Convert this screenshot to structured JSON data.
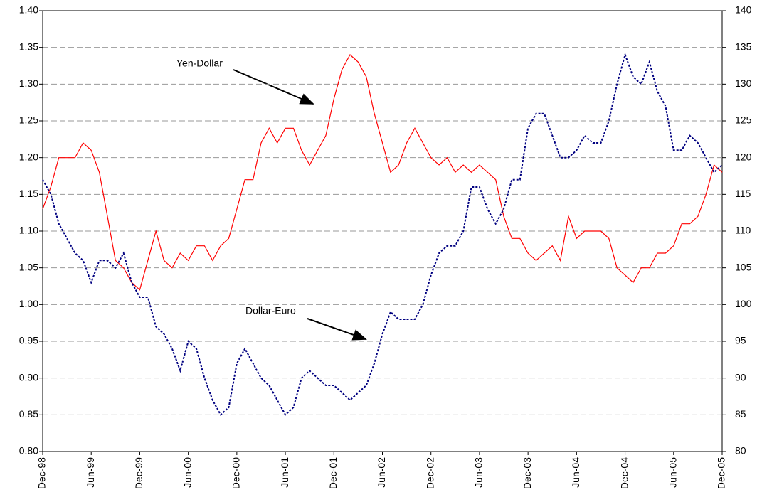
{
  "chart_data": {
    "type": "line",
    "categories": [
      "Dec-98",
      null,
      null,
      null,
      null,
      null,
      "Jun-99",
      null,
      null,
      null,
      null,
      null,
      "Dec-99",
      null,
      null,
      null,
      null,
      null,
      "Jun-00",
      null,
      null,
      null,
      null,
      null,
      "Dec-00",
      null,
      null,
      null,
      null,
      null,
      "Jun-01",
      null,
      null,
      null,
      null,
      null,
      "Dec-01",
      null,
      null,
      null,
      null,
      null,
      "Jun-02",
      null,
      null,
      null,
      null,
      null,
      "Dec-02",
      null,
      null,
      null,
      null,
      null,
      "Jun-03",
      null,
      null,
      null,
      null,
      null,
      "Dec-03",
      null,
      null,
      null,
      null,
      null,
      "Jun-04",
      null,
      null,
      null,
      null,
      null,
      "Dec-04",
      null,
      null,
      null,
      null,
      null,
      "Jun-05",
      null,
      null,
      null,
      null,
      null,
      "Dec-05"
    ],
    "series": [
      {
        "name": "Yen-Dollar",
        "color": "#ff0000",
        "axis": "y2",
        "style": "solid",
        "values": [
          113,
          116,
          120,
          120,
          120,
          122,
          121,
          118,
          112,
          106,
          105,
          103,
          102,
          106,
          110,
          106,
          105,
          107,
          106,
          108,
          108,
          106,
          108,
          109,
          113,
          117,
          117,
          122,
          124,
          122,
          124,
          124,
          121,
          119,
          121,
          123,
          128,
          132,
          134,
          133,
          131,
          126,
          122,
          118,
          119,
          122,
          124,
          122,
          120,
          119,
          120,
          118,
          119,
          118,
          119,
          118,
          117,
          112,
          109,
          109,
          107,
          106,
          107,
          108,
          106,
          112,
          109,
          110,
          110,
          110,
          109,
          105,
          104,
          103,
          105,
          105,
          107,
          107,
          108,
          111,
          111,
          112,
          115,
          119,
          118
        ]
      },
      {
        "name": "Dollar-Euro",
        "color": "#000080",
        "axis": "y",
        "style": "dotted",
        "values": [
          1.17,
          1.15,
          1.11,
          1.09,
          1.07,
          1.06,
          1.03,
          1.06,
          1.06,
          1.05,
          1.07,
          1.03,
          1.01,
          1.01,
          0.97,
          0.96,
          0.94,
          0.91,
          0.95,
          0.94,
          0.9,
          0.87,
          0.85,
          0.86,
          0.92,
          0.94,
          0.92,
          0.9,
          0.89,
          0.87,
          0.85,
          0.86,
          0.9,
          0.91,
          0.9,
          0.89,
          0.89,
          0.88,
          0.87,
          0.88,
          0.89,
          0.92,
          0.96,
          0.99,
          0.98,
          0.98,
          0.98,
          1.0,
          1.04,
          1.07,
          1.08,
          1.08,
          1.1,
          1.16,
          1.16,
          1.13,
          1.11,
          1.13,
          1.17,
          1.17,
          1.24,
          1.26,
          1.26,
          1.23,
          1.2,
          1.2,
          1.21,
          1.23,
          1.22,
          1.22,
          1.25,
          1.3,
          1.34,
          1.31,
          1.3,
          1.33,
          1.29,
          1.27,
          1.21,
          1.21,
          1.23,
          1.22,
          1.2,
          1.18,
          1.19
        ]
      }
    ],
    "ylim": [
      0.8,
      1.4
    ],
    "yticks": [
      {
        "value": 0.8,
        "label": "0.80"
      },
      0.85,
      {
        "value": 0.9,
        "label": "0.90"
      },
      0.95,
      {
        "value": 1.0,
        "label": "1.00"
      },
      1.05,
      {
        "value": 1.1,
        "label": "1.10"
      },
      1.15,
      {
        "value": 1.2,
        "label": "1.20"
      },
      1.25,
      {
        "value": 1.3,
        "label": "1.30"
      },
      1.35,
      {
        "value": 1.4,
        "label": "1.40"
      }
    ],
    "y2lim": [
      80,
      140
    ],
    "y2ticks": [
      80,
      85,
      90,
      95,
      100,
      105,
      110,
      115,
      120,
      125,
      130,
      135,
      140
    ],
    "grid": true
  }
}
